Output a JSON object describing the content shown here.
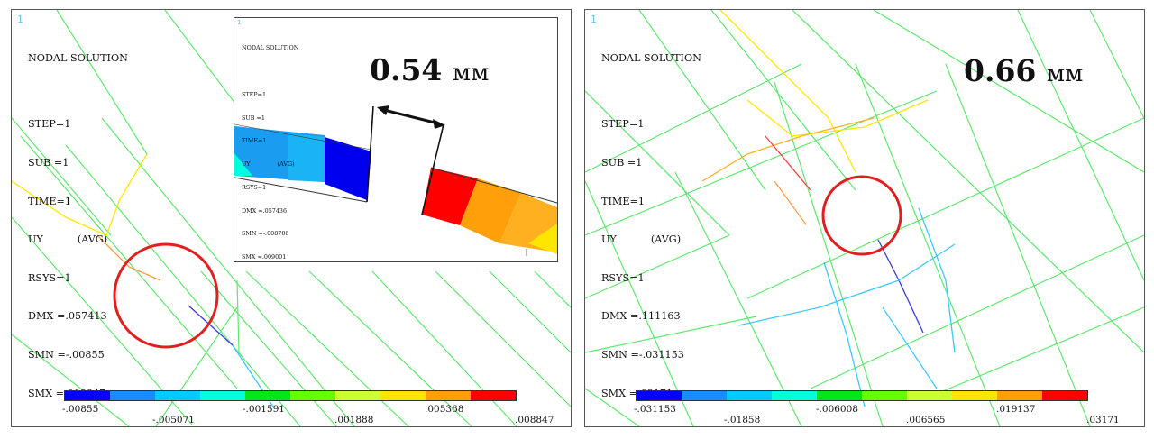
{
  "left": {
    "corner_label": "1",
    "info": {
      "title": "NODAL SOLUTION",
      "step": "STEP=1",
      "sub": "SUB =1",
      "time": "TIME=1",
      "var": "UY",
      "avg": "(AVG)",
      "rsys": "RSYS=1",
      "dmx": "DMX =.057413",
      "smn": "SMN =-.00855",
      "smx": "SMX =.008847"
    },
    "inset": {
      "corner_label": "1",
      "info": {
        "title": "NODAL SOLUTION",
        "step": "STEP=1",
        "sub": "SUB =1",
        "time": "TIME=1",
        "var": "UY",
        "avg": "(AVG)",
        "rsys": "RSYS=1",
        "dmx": "DMX =.057436",
        "smn": "SMN =-.008706",
        "smx": "SMX =.009001"
      },
      "gap_value": "0.54",
      "gap_unit": "мм"
    },
    "legend_ticks": [
      "-.00855",
      "-.005071",
      "-.001591",
      ".001888",
      ".005368",
      ".008847"
    ]
  },
  "right": {
    "corner_label": "1",
    "info": {
      "title": "NODAL SOLUTION",
      "step": "STEP=1",
      "sub": "SUB =1",
      "time": "TIME=1",
      "var": "UY",
      "avg": "(AVG)",
      "rsys": "RSYS=1",
      "dmx": "DMX =.111163",
      "smn": "SMN =-.031153",
      "smx": "SMX =.03171"
    },
    "gap_value": "0.66",
    "gap_unit": "мм",
    "legend_ticks": [
      "-.031153",
      "-.01858",
      "-.006008",
      ".006565",
      ".019137",
      ".03171"
    ]
  },
  "colors": {
    "contour": [
      "#0000ff",
      "#1a8cff",
      "#00ccff",
      "#00ffe0",
      "#00e61a",
      "#66ff00",
      "#ccff33",
      "#ffe600",
      "#ffa00a",
      "#ff0000"
    ],
    "mesh_line": "#5ee86e",
    "highlight_circle": "#e02020"
  }
}
